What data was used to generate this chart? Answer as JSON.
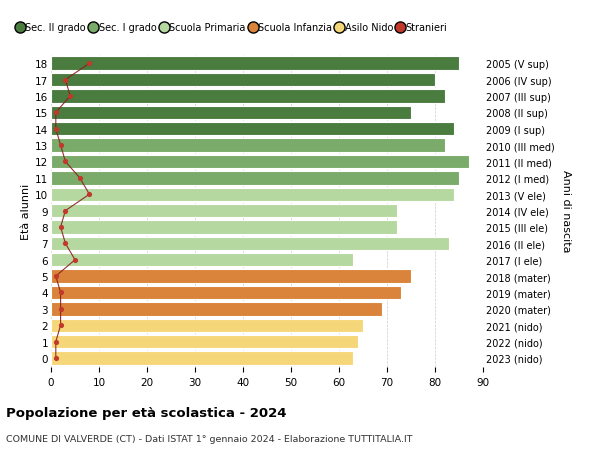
{
  "ages": [
    18,
    17,
    16,
    15,
    14,
    13,
    12,
    11,
    10,
    9,
    8,
    7,
    6,
    5,
    4,
    3,
    2,
    1,
    0
  ],
  "labels_right": [
    "2005 (V sup)",
    "2006 (IV sup)",
    "2007 (III sup)",
    "2008 (II sup)",
    "2009 (I sup)",
    "2010 (III med)",
    "2011 (II med)",
    "2012 (I med)",
    "2013 (V ele)",
    "2014 (IV ele)",
    "2015 (III ele)",
    "2016 (II ele)",
    "2017 (I ele)",
    "2018 (mater)",
    "2019 (mater)",
    "2020 (mater)",
    "2021 (nido)",
    "2022 (nido)",
    "2023 (nido)"
  ],
  "bar_values": [
    85,
    80,
    82,
    75,
    84,
    82,
    87,
    85,
    84,
    72,
    72,
    83,
    63,
    75,
    73,
    69,
    65,
    64,
    63
  ],
  "stranieri": [
    8,
    3,
    4,
    1,
    1,
    2,
    3,
    6,
    8,
    3,
    2,
    3,
    5,
    1,
    2,
    2,
    2,
    1,
    1
  ],
  "bar_colors": [
    "#4a7c3f",
    "#4a7c3f",
    "#4a7c3f",
    "#4a7c3f",
    "#4a7c3f",
    "#7aab6a",
    "#7aab6a",
    "#7aab6a",
    "#b5d8a0",
    "#b5d8a0",
    "#b5d8a0",
    "#b5d8a0",
    "#b5d8a0",
    "#d9843a",
    "#d9843a",
    "#d9843a",
    "#f5d678",
    "#f5d678",
    "#f5d678"
  ],
  "legend_labels": [
    "Sec. II grado",
    "Sec. I grado",
    "Scuola Primaria",
    "Scuola Infanzia",
    "Asilo Nido",
    "Stranieri"
  ],
  "legend_colors": [
    "#4a7c3f",
    "#7aab6a",
    "#b5d8a0",
    "#d9843a",
    "#f5d678",
    "#c0392b"
  ],
  "ylabel_left": "Età alunni",
  "ylabel_right": "Anni di nascita",
  "title": "Popolazione per età scolastica - 2024",
  "subtitle": "COMUNE DI VALVERDE (CT) - Dati ISTAT 1° gennaio 2024 - Elaborazione TUTTITALIA.IT",
  "xlim": [
    0,
    90
  ],
  "xticks": [
    0,
    10,
    20,
    30,
    40,
    50,
    60,
    70,
    80,
    90
  ],
  "background_color": "#ffffff",
  "bar_height": 0.82
}
